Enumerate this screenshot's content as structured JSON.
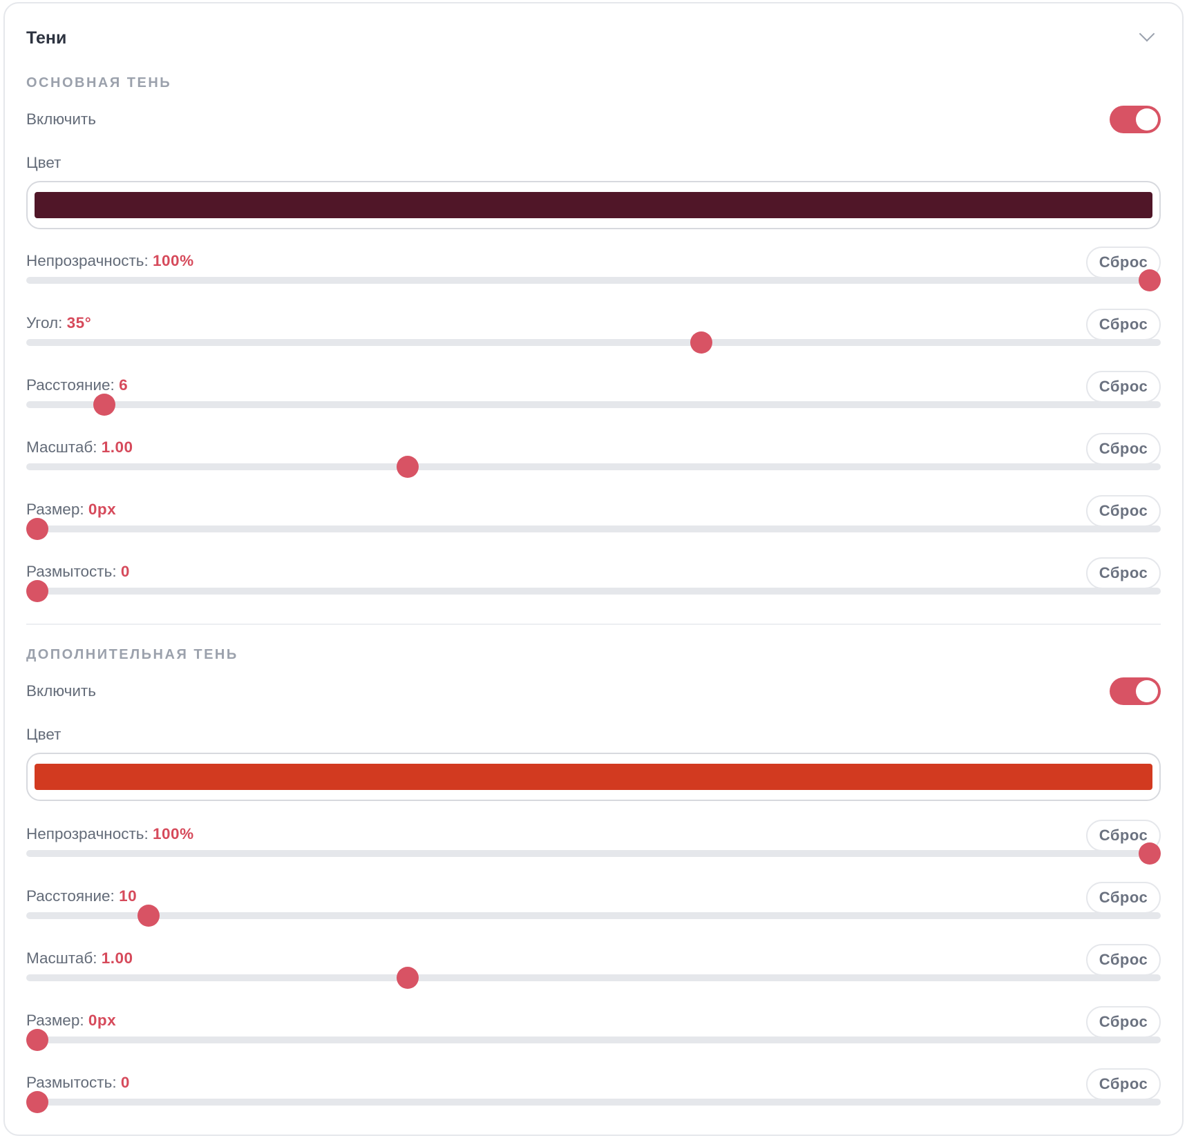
{
  "panel": {
    "title": "Тени",
    "collapse_icon": "chevron-down-icon"
  },
  "colors": {
    "accent": "#D85364",
    "track": "#E5E7EB"
  },
  "primary": {
    "section_label": "ОСНОВНАЯ ТЕНЬ",
    "enable_label": "Включить",
    "enabled": true,
    "color_label": "Цвет",
    "color": "#501628",
    "sliders": [
      {
        "label": "Непрозрачность:",
        "value": "100%",
        "fraction": 1.0,
        "reset": "Сброс"
      },
      {
        "label": "Угол:",
        "value": "35°",
        "fraction": 0.597,
        "reset": "Сброс"
      },
      {
        "label": "Расстояние:",
        "value": "6",
        "fraction": 0.06,
        "reset": "Сброс"
      },
      {
        "label": "Масштаб:",
        "value": "1.00",
        "fraction": 0.333,
        "reset": "Сброс"
      },
      {
        "label": "Размер:",
        "value": "0px",
        "fraction": 0,
        "reset": "Сброс"
      },
      {
        "label": "Размытость:",
        "value": "0",
        "fraction": 0,
        "reset": "Сброс"
      }
    ]
  },
  "secondary": {
    "section_label": "ДОПОЛНИТЕЛЬНАЯ ТЕНЬ",
    "enable_label": "Включить",
    "enabled": true,
    "color_label": "Цвет",
    "color": "#D23A20",
    "sliders": [
      {
        "label": "Непрозрачность:",
        "value": "100%",
        "fraction": 1.0,
        "reset": "Сброс"
      },
      {
        "label": "Расстояние:",
        "value": "10",
        "fraction": 0.1,
        "reset": "Сброс"
      },
      {
        "label": "Масштаб:",
        "value": "1.00",
        "fraction": 0.333,
        "reset": "Сброс"
      },
      {
        "label": "Размер:",
        "value": "0px",
        "fraction": 0,
        "reset": "Сброс"
      },
      {
        "label": "Размытость:",
        "value": "0",
        "fraction": 0,
        "reset": "Сброс"
      }
    ]
  }
}
